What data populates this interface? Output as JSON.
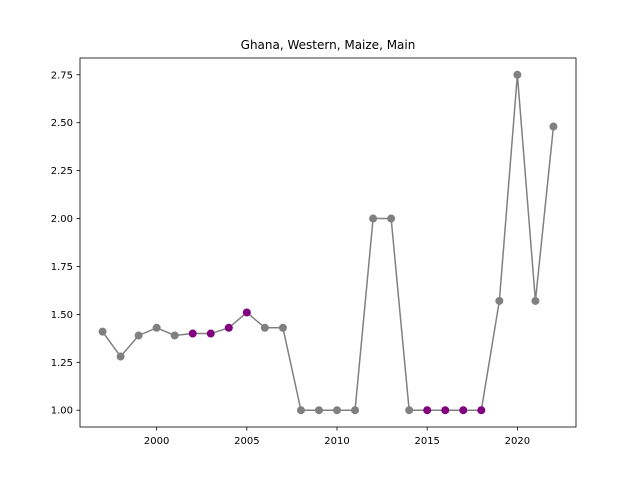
{
  "chart_data": {
    "type": "line",
    "title": "Ghana, Western, Maize, Main",
    "xlabel": "",
    "ylabel": "",
    "xlim": [
      1995.75,
      2023.25
    ],
    "ylim": [
      0.9125,
      2.8375
    ],
    "xticks": [
      2000,
      2005,
      2010,
      2015,
      2020
    ],
    "yticks": [
      1.0,
      1.25,
      1.5,
      1.75,
      2.0,
      2.25,
      2.5,
      2.75
    ],
    "ytick_labels": [
      "1.00",
      "1.25",
      "1.50",
      "1.75",
      "2.00",
      "2.25",
      "2.50",
      "2.75"
    ],
    "grid": false,
    "legend": "none",
    "line_color": "#808080",
    "default_marker_color": "#808080",
    "highlight_marker_color": "#800080",
    "series": [
      {
        "x": [
          1997,
          1998,
          1999,
          2000,
          2001,
          2002,
          2003,
          2004,
          2005,
          2006,
          2007,
          2008,
          2009,
          2010,
          2011,
          2012,
          2013,
          2014,
          2015,
          2016,
          2017,
          2018,
          2019,
          2020,
          2021,
          2022
        ],
        "y": [
          1.41,
          1.28,
          1.39,
          1.43,
          1.39,
          1.4,
          1.4,
          1.43,
          1.51,
          1.43,
          1.43,
          1.0,
          1.0,
          1.0,
          1.0,
          2.0,
          2.0,
          1.0,
          1.0,
          1.0,
          1.0,
          1.0,
          1.57,
          2.75,
          1.57,
          2.48
        ],
        "highlight": [
          false,
          false,
          false,
          false,
          false,
          true,
          true,
          true,
          true,
          false,
          false,
          false,
          false,
          false,
          false,
          false,
          false,
          false,
          true,
          true,
          true,
          true,
          false,
          false,
          false,
          false
        ]
      }
    ]
  }
}
